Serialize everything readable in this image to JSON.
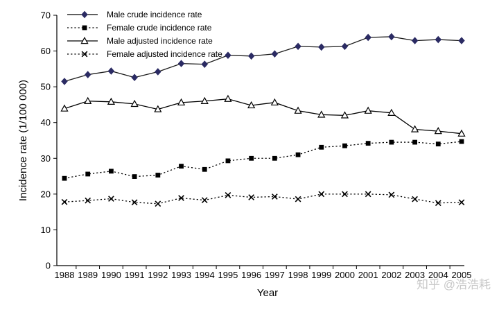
{
  "chart_data": {
    "type": "line",
    "title": "",
    "xlabel": "Year",
    "ylabel": "Incidence rate (1/100 000)",
    "x": [
      "1988",
      "1989",
      "1990",
      "1991",
      "1992",
      "1993",
      "1994",
      "1995",
      "1996",
      "1997",
      "1998",
      "1999",
      "2000",
      "2001",
      "2002",
      "2003",
      "2004",
      "2005"
    ],
    "ylim": [
      0,
      70
    ],
    "yticks": [
      "0",
      "10",
      "20",
      "30",
      "40",
      "50",
      "60",
      "70"
    ],
    "grid": false,
    "legend_position": "top-left",
    "series": [
      {
        "name": "Male crude incidence rate",
        "marker": "diamond",
        "line": "solid",
        "color": "#2b2b63",
        "values": [
          51.5,
          53.4,
          54.4,
          52.6,
          54.2,
          56.5,
          56.3,
          58.8,
          58.6,
          59.2,
          61.3,
          61.1,
          61.3,
          63.8,
          64.0,
          62.9,
          63.2,
          62.9
        ]
      },
      {
        "name": "Female crude incidence rate",
        "marker": "square",
        "line": "dotted",
        "color": "#000000",
        "values": [
          24.4,
          25.6,
          26.4,
          24.9,
          25.3,
          27.8,
          26.9,
          29.3,
          30.0,
          30.0,
          31.0,
          33.1,
          33.5,
          34.2,
          34.5,
          34.5,
          34.0,
          34.7
        ]
      },
      {
        "name": "Male adjusted incidence rate",
        "marker": "triangle",
        "line": "solid",
        "color": "#000000",
        "values": [
          43.9,
          46.0,
          45.8,
          45.2,
          43.7,
          45.6,
          46.0,
          46.6,
          44.8,
          45.6,
          43.3,
          42.2,
          42.0,
          43.3,
          42.7,
          38.1,
          37.6,
          36.9
        ]
      },
      {
        "name": "Female adjusted incidence rate",
        "marker": "x",
        "line": "dotted",
        "color": "#000000",
        "values": [
          17.8,
          18.2,
          18.7,
          17.7,
          17.3,
          18.9,
          18.3,
          19.7,
          19.1,
          19.3,
          18.6,
          20.0,
          20.0,
          20.0,
          19.8,
          18.6,
          17.5,
          17.7
        ]
      }
    ]
  },
  "watermark": "知乎 @浩浩耗"
}
